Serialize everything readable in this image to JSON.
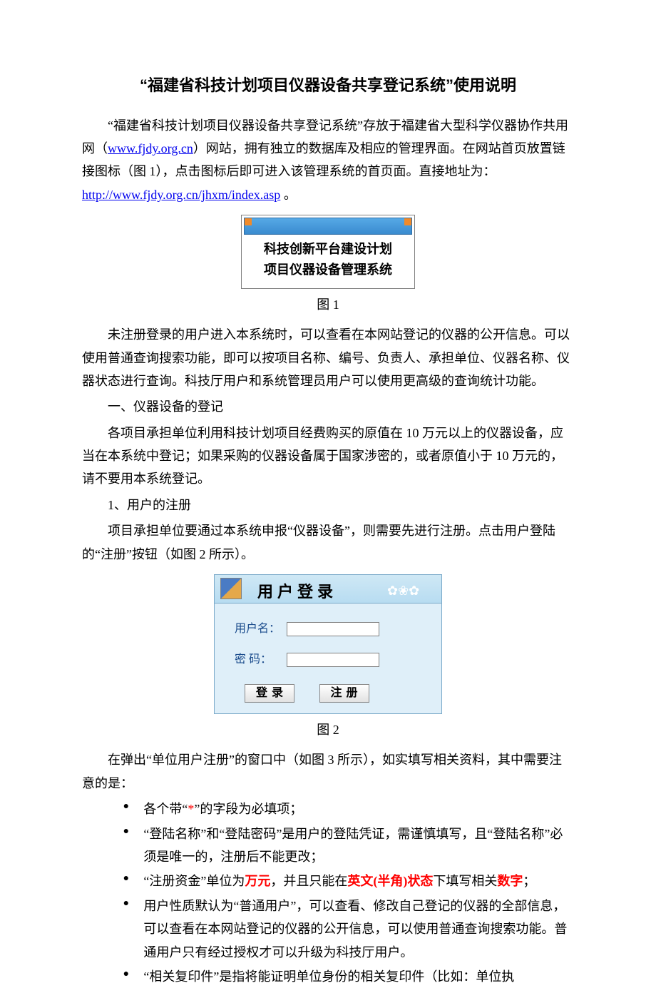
{
  "title": "“福建省科技计划项目仪器设备共享登记系统”使用说明",
  "para1_a": "“福建省科技计划项目仪器设备共享登记系统”存放于福建省大型科学仪器协作共用网（",
  "link1": "www.fjdy.org.cn",
  "para1_b": "）网站，拥有独立的数据库及相应的管理界面。在网站首页放置链接图标（图 1），点击图标后即可进入该管理系统的首页面。直接地址为：",
  "link2": "http://www.fjdy.org.cn/jhxm/index.asp",
  "para1_c": " 。",
  "fig1": {
    "line1": "科技创新平台建设计划",
    "line2": "项目仪器设备管理系统",
    "caption": "图 1",
    "colors": {
      "topGrad1": "#56a9e6",
      "topGrad2": "#3a8bcf",
      "corner": "#f08a2a",
      "border": "#808080"
    }
  },
  "para2": "未注册登录的用户进入本系统时，可以查看在本网站登记的仪器的公开信息。可以使用普通查询搜索功能，即可以按项目名称、编号、负责人、承担单位、仪器名称、仪器状态进行查询。科技厅用户和系统管理员用户可以使用更高级的查询统计功能。",
  "sec1_title": "一、仪器设备的登记",
  "sec1_p1": "各项目承担单位利用科技计划项目经费购买的原值在 10 万元以上的仪器设备，应当在本系统中登记；如果采购的仪器设备属于国家涉密的，或者原值小于 10 万元的，请不要用本系统登记。",
  "sec1_sub1": "1、用户的注册",
  "sec1_p2": "项目承担单位要通过本系统申报“仪器设备”，则需要先进行注册。点击用户登陆的“注册”按钮（如图 2 所示）。",
  "fig2": {
    "title": "用户登录",
    "username_label": "用户名：",
    "password_label": "密  码：",
    "login_btn": "登录",
    "register_btn": "注册",
    "caption": "图 2",
    "colors": {
      "panelBg": "#dfeff9",
      "panelBorder": "#7aa9c9",
      "labelColor": "#1a4b8c"
    }
  },
  "para3": "在弹出“单位用户注册”的窗口中（如图 3 所示），如实填写相关资料，其中需要注意的是：",
  "bullets": {
    "b1_a": "各个带“",
    "b1_star": "*",
    "b1_b": "”的字段为必填项；",
    "b2": "“登陆名称”和“登陆密码”是用户的登陆凭证，需谨慎填写，且“登陆名称”必须是唯一的，注册后不能更改；",
    "b3_a": "“注册资金”单位为",
    "b3_r1": "万元",
    "b3_b": "，并且只能在",
    "b3_r2": "英文(半角)状态",
    "b3_c": "下填写相关",
    "b3_r3": "数字",
    "b3_d": "；",
    "b4": "用户性质默认为“普通用户”，可以查看、修改自己登记的仪器的全部信息，可以查看在本网站登记的仪器的公开信息，可以使用普通查询搜索功能。普通用户只有经过授权才可以升级为科技厅用户。",
    "b5": "“相关复印件”是指将能证明单位身份的相关复印件（比如：单位执"
  }
}
